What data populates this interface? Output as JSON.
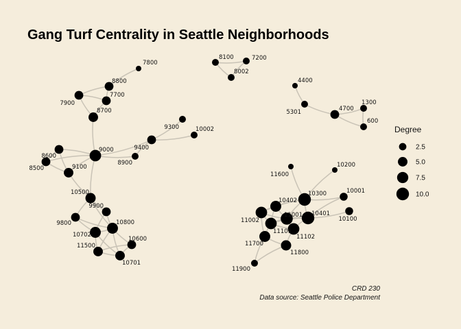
{
  "chart_data": {
    "type": "network",
    "title": "Gang Turf Centrality in Seattle Neighborhoods",
    "legend": {
      "title": "Degree",
      "placement": "right",
      "entries": [
        {
          "label": "2.5",
          "value": 2.5
        },
        {
          "label": "5.0",
          "value": 5.0
        },
        {
          "label": "7.5",
          "value": 7.5
        },
        {
          "label": "10.0",
          "value": 10.0
        }
      ]
    },
    "caption": [
      "CRD 230",
      "Data source: Seattle Police Department"
    ],
    "nodes": [
      {
        "id": "7800",
        "degree": 1
      },
      {
        "id": "8800",
        "degree": 4
      },
      {
        "id": "7700",
        "degree": 4
      },
      {
        "id": "7900",
        "degree": 4
      },
      {
        "id": "8700",
        "degree": 5
      },
      {
        "id": "9000",
        "degree": 8
      },
      {
        "id": "8600",
        "degree": 4
      },
      {
        "id": "8500",
        "degree": 4
      },
      {
        "id": "9100",
        "degree": 5
      },
      {
        "id": "9300",
        "degree": 2
      },
      {
        "id": "10002",
        "degree": 2
      },
      {
        "id": "9400",
        "degree": 4
      },
      {
        "id": "8900",
        "degree": 2
      },
      {
        "id": "10500",
        "degree": 6
      },
      {
        "id": "9900",
        "degree": 4
      },
      {
        "id": "9800",
        "degree": 4
      },
      {
        "id": "10800",
        "degree": 7
      },
      {
        "id": "10702",
        "degree": 7
      },
      {
        "id": "10600",
        "degree": 4
      },
      {
        "id": "11500",
        "degree": 5
      },
      {
        "id": "10701",
        "degree": 5
      },
      {
        "id": "8100",
        "degree": 2
      },
      {
        "id": "7200",
        "degree": 2
      },
      {
        "id": "8002",
        "degree": 2
      },
      {
        "id": "4400",
        "degree": 1
      },
      {
        "id": "5301",
        "degree": 2
      },
      {
        "id": "4700",
        "degree": 4
      },
      {
        "id": "1300",
        "degree": 2
      },
      {
        "id": "600",
        "degree": 2
      },
      {
        "id": "11600",
        "degree": 1
      },
      {
        "id": "10200",
        "degree": 1
      },
      {
        "id": "10300",
        "degree": 10
      },
      {
        "id": "10001",
        "degree": 3
      },
      {
        "id": "10402",
        "degree": 7
      },
      {
        "id": "10401",
        "degree": 10
      },
      {
        "id": "10100",
        "degree": 3
      },
      {
        "id": "11002",
        "degree": 8
      },
      {
        "id": "11001",
        "degree": 9
      },
      {
        "id": "11101",
        "degree": 8
      },
      {
        "id": "11102",
        "degree": 8
      },
      {
        "id": "11700",
        "degree": 7
      },
      {
        "id": "11800",
        "degree": 6
      },
      {
        "id": "11900",
        "degree": 2
      }
    ],
    "edges": [
      [
        "7800",
        "8800"
      ],
      [
        "8800",
        "7700"
      ],
      [
        "8800",
        "7900"
      ],
      [
        "7700",
        "7900"
      ],
      [
        "7700",
        "8700"
      ],
      [
        "7900",
        "8700"
      ],
      [
        "8700",
        "9000"
      ],
      [
        "9000",
        "8600"
      ],
      [
        "9000",
        "8500"
      ],
      [
        "9000",
        "9100"
      ],
      [
        "9000",
        "9400"
      ],
      [
        "9000",
        "8900"
      ],
      [
        "9000",
        "10500"
      ],
      [
        "8600",
        "8500"
      ],
      [
        "8600",
        "9100"
      ],
      [
        "8500",
        "9100"
      ],
      [
        "9100",
        "10500"
      ],
      [
        "9400",
        "9300"
      ],
      [
        "9400",
        "10002"
      ],
      [
        "9400",
        "8900"
      ],
      [
        "10500",
        "9900"
      ],
      [
        "10500",
        "9800"
      ],
      [
        "10500",
        "10800"
      ],
      [
        "9900",
        "10800"
      ],
      [
        "9900",
        "10702"
      ],
      [
        "9800",
        "10702"
      ],
      [
        "9800",
        "10800"
      ],
      [
        "10702",
        "10800"
      ],
      [
        "10702",
        "11500"
      ],
      [
        "10702",
        "10701"
      ],
      [
        "10800",
        "10600"
      ],
      [
        "10800",
        "11500"
      ],
      [
        "10800",
        "10701"
      ],
      [
        "10600",
        "10701"
      ],
      [
        "11500",
        "10701"
      ],
      [
        "10600",
        "11500"
      ],
      [
        "8100",
        "7200"
      ],
      [
        "8100",
        "8002"
      ],
      [
        "7200",
        "8002"
      ],
      [
        "4400",
        "5301"
      ],
      [
        "5301",
        "4700"
      ],
      [
        "4700",
        "1300"
      ],
      [
        "4700",
        "600"
      ],
      [
        "1300",
        "600"
      ],
      [
        "11600",
        "10300"
      ],
      [
        "10200",
        "10300"
      ],
      [
        "10300",
        "10001"
      ],
      [
        "10300",
        "10402"
      ],
      [
        "10300",
        "10401"
      ],
      [
        "10300",
        "11002"
      ],
      [
        "10300",
        "11001"
      ],
      [
        "10001",
        "10401"
      ],
      [
        "10401",
        "10100"
      ],
      [
        "10402",
        "11002"
      ],
      [
        "10402",
        "11001"
      ],
      [
        "10402",
        "11101"
      ],
      [
        "10401",
        "11001"
      ],
      [
        "10401",
        "11102"
      ],
      [
        "10401",
        "11101"
      ],
      [
        "11002",
        "11001"
      ],
      [
        "11002",
        "11101"
      ],
      [
        "11001",
        "11101"
      ],
      [
        "11001",
        "11102"
      ],
      [
        "11101",
        "11102"
      ],
      [
        "11101",
        "11700"
      ],
      [
        "11102",
        "11800"
      ],
      [
        "11700",
        "11800"
      ],
      [
        "11700",
        "11900"
      ],
      [
        "11800",
        "11900"
      ],
      [
        "11002",
        "11700"
      ]
    ]
  }
}
